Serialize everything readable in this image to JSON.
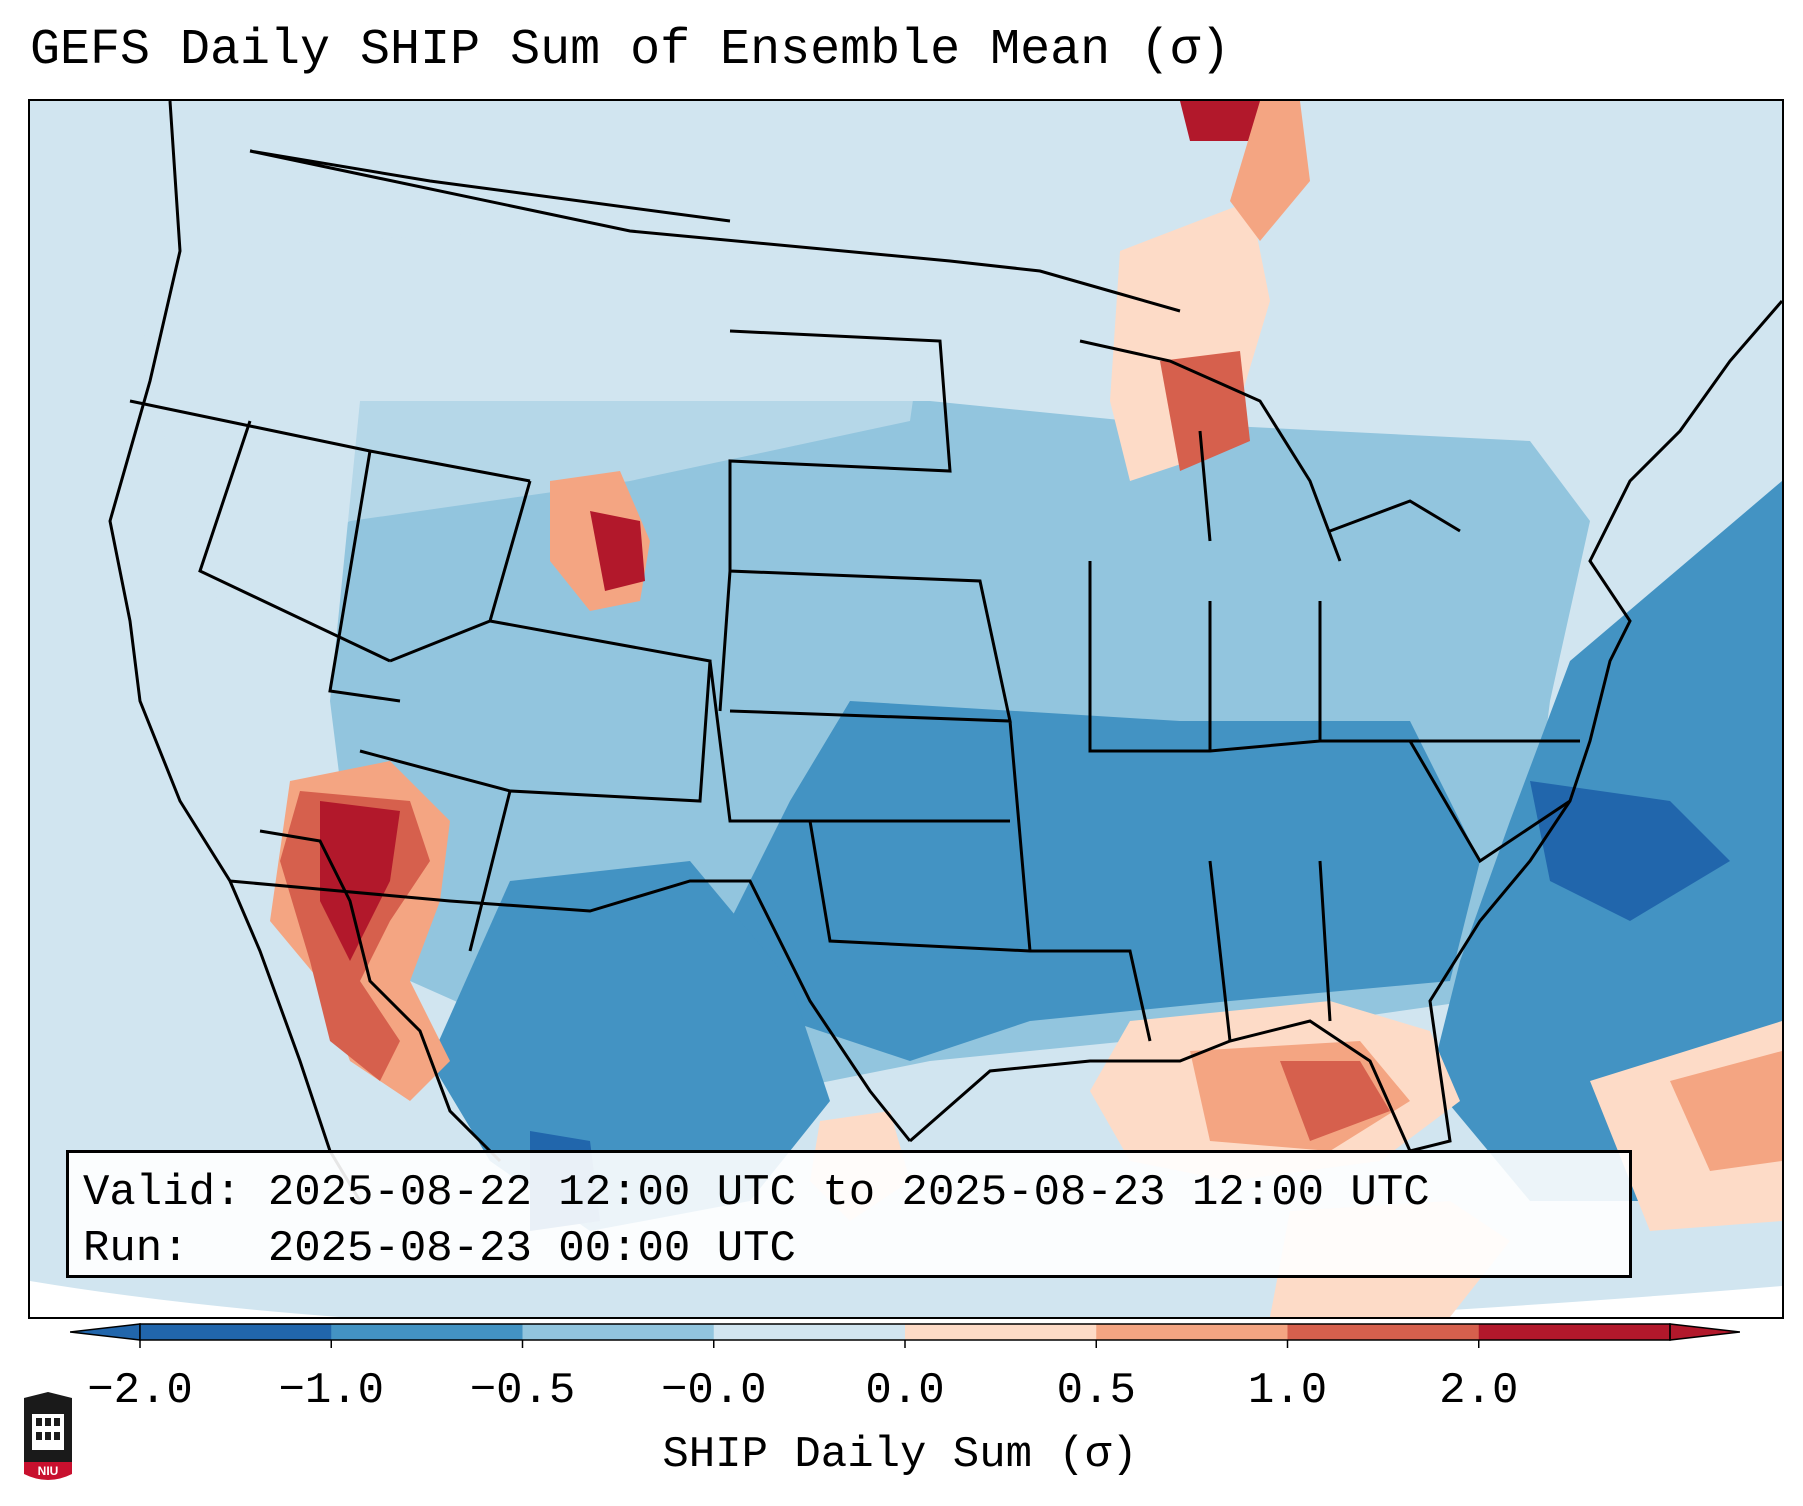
{
  "title": "GEFS Daily SHIP Sum of Ensemble Mean (σ)",
  "info": {
    "valid_label": "Valid:",
    "valid_value": "2025-08-22 12:00 UTC to 2025-08-23 12:00 UTC",
    "run_label": "Run:",
    "run_value": "2025-08-23 00:00 UTC"
  },
  "colorbar": {
    "label": "SHIP Daily Sum (σ)",
    "ticks": [
      "−2.0",
      "−1.0",
      "−0.5",
      "−0.0",
      "0.0",
      "0.5",
      "1.0",
      "2.0"
    ],
    "colors": [
      "#2166ac",
      "#4393c3",
      "#92c5de",
      "#d1e5f0",
      "#fddbc7",
      "#f4a582",
      "#d6604d",
      "#b2182b"
    ],
    "extend": "both"
  },
  "logo_text": "NIU",
  "map": {
    "projection": "Lambert conformal, contiguous United States",
    "background_color": "#d1e5f0",
    "boundaries": "states, coastlines"
  }
}
